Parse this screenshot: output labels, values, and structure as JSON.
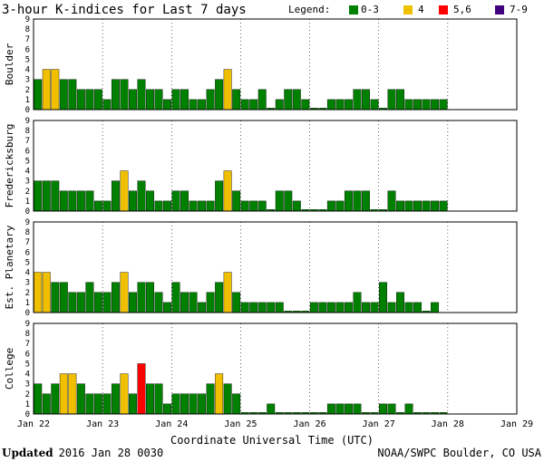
{
  "title": "3-hour K-indices for Last 7 days",
  "legend": {
    "label": "Legend:",
    "items": [
      {
        "label": "0-3",
        "color": "#008000"
      },
      {
        "label": "4",
        "color": "#f0c000"
      },
      {
        "label": "5,6",
        "color": "#ff0000"
      },
      {
        "label": "7-9",
        "color": "#400080"
      }
    ]
  },
  "footer": {
    "updated_label": "Updated",
    "updated_value": "2016 Jan 28 0030",
    "credit": "NOAA/SWPC Boulder, CO USA"
  },
  "chart_data": {
    "type": "bar",
    "xlabel": "Coordinate Universal Time (UTC)",
    "x_ticks": [
      "Jan 22",
      "Jan 23",
      "Jan 24",
      "Jan 25",
      "Jan 26",
      "Jan 27",
      "Jan 28",
      "Jan 29"
    ],
    "y_ticks": [
      "0",
      "1",
      "2",
      "3",
      "4",
      "5",
      "6",
      "7",
      "8",
      "9"
    ],
    "ylim": [
      0,
      9
    ],
    "bins_per_day": 8,
    "grid": true,
    "color_scale": [
      {
        "range": "0-3",
        "color": "#008000"
      },
      {
        "range": "4",
        "color": "#f0c000"
      },
      {
        "range": "5,6",
        "color": "#ff0000"
      },
      {
        "range": "7-9",
        "color": "#400080"
      }
    ],
    "series": [
      {
        "name": "Boulder",
        "values": [
          3,
          4,
          4,
          3,
          3,
          2,
          2,
          2,
          1,
          3,
          3,
          2,
          3,
          2,
          2,
          1,
          2,
          2,
          1,
          1,
          2,
          3,
          4,
          2,
          1,
          1,
          2,
          0,
          1,
          2,
          2,
          1,
          0,
          0,
          1,
          1,
          1,
          2,
          2,
          1,
          0,
          2,
          2,
          1,
          1,
          1,
          1,
          1
        ]
      },
      {
        "name": "Fredericksburg",
        "values": [
          3,
          3,
          3,
          2,
          2,
          2,
          2,
          1,
          1,
          3,
          4,
          2,
          3,
          2,
          1,
          1,
          2,
          2,
          1,
          1,
          1,
          3,
          4,
          2,
          1,
          1,
          1,
          0,
          2,
          2,
          1,
          0,
          0,
          0,
          1,
          1,
          2,
          2,
          2,
          0,
          0,
          2,
          1,
          1,
          1,
          1,
          1,
          1
        ]
      },
      {
        "name": "Est. Planetary",
        "values": [
          4,
          4,
          3,
          3,
          2,
          2,
          3,
          2,
          2,
          3,
          4,
          2,
          3,
          3,
          2,
          1,
          3,
          2,
          2,
          1,
          2,
          3,
          4,
          2,
          1,
          1,
          1,
          1,
          1,
          0,
          0,
          0,
          1,
          1,
          1,
          1,
          1,
          2,
          1,
          1,
          3,
          1,
          2,
          1,
          1,
          0,
          1
        ]
      },
      {
        "name": "College",
        "values": [
          3,
          2,
          3,
          4,
          4,
          3,
          2,
          2,
          2,
          3,
          4,
          2,
          5,
          3,
          3,
          1,
          2,
          2,
          2,
          2,
          3,
          4,
          3,
          2,
          0,
          0,
          0,
          1,
          0,
          0,
          0,
          0,
          0,
          0,
          1,
          1,
          1,
          1,
          0,
          0,
          1,
          1,
          0,
          1,
          0,
          0,
          0,
          0
        ]
      }
    ]
  }
}
